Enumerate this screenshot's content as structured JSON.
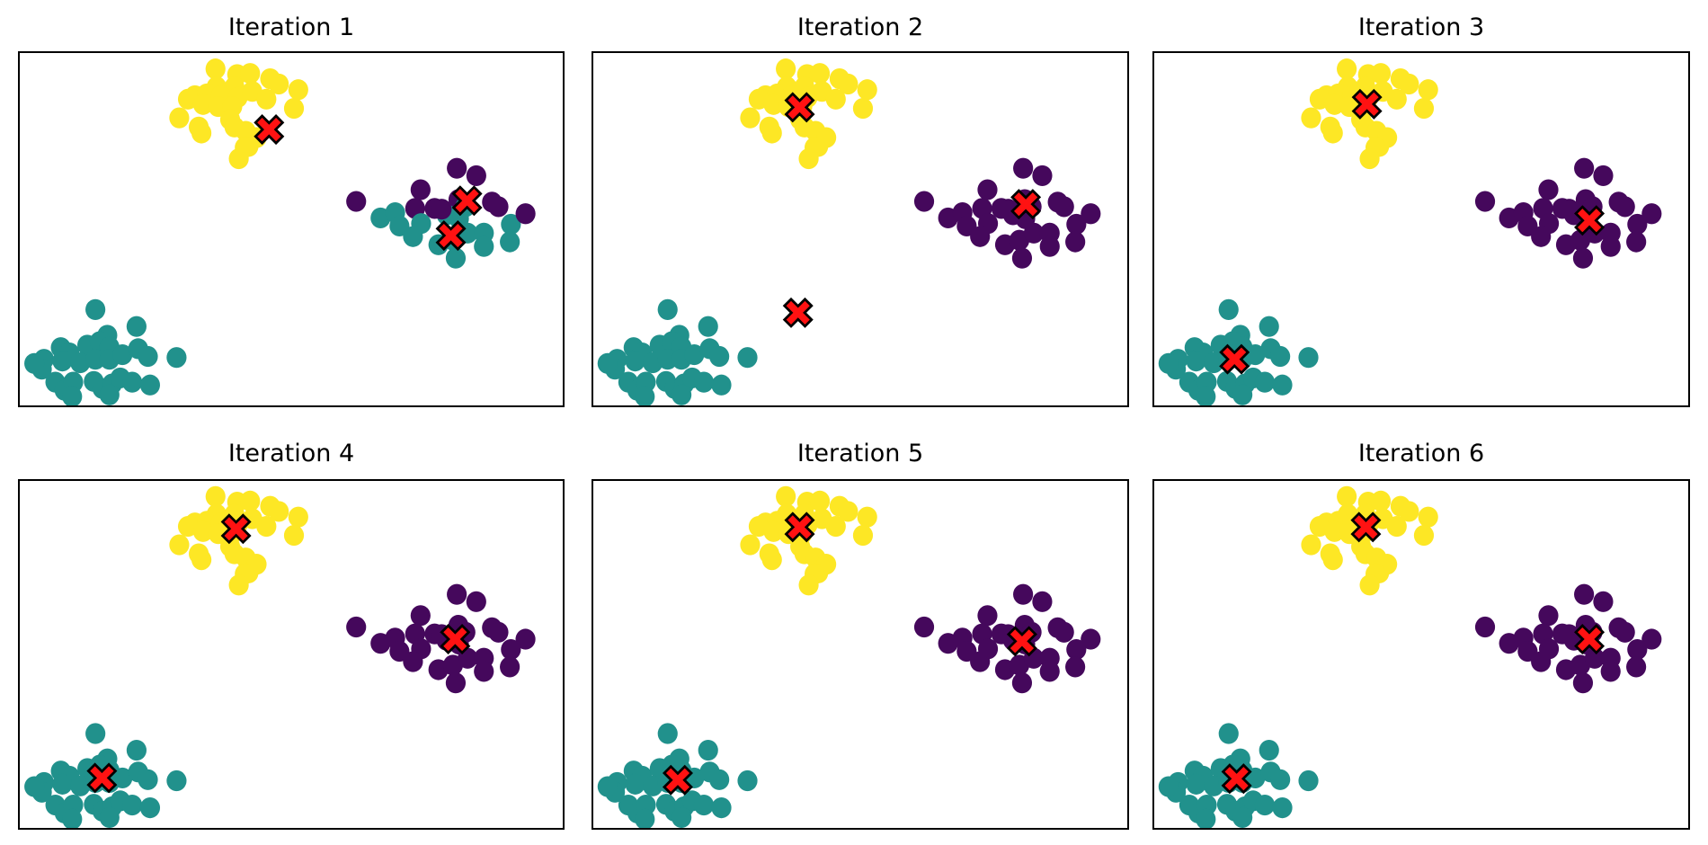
{
  "figure": {
    "background": "#ffffff",
    "kind": "k-means clustering iteration grid (2 rows x 3 columns of scatter subplots)"
  },
  "chart_data": {
    "type": "scatter",
    "title": "",
    "grid": "off",
    "axes": {
      "ticks": "none",
      "tick_labels": "none",
      "frame": "black 2px box",
      "coord_system": "normalized fraction of each panel, origin at top-left, x right, y down"
    },
    "legend": "none",
    "subplots": [
      {
        "title": "Iteration 1",
        "centroids": [
          [
            0.459,
            0.217
          ],
          [
            0.825,
            0.419
          ],
          [
            0.795,
            0.518
          ]
        ],
        "right_cluster_coloring": "split"
      },
      {
        "title": "Iteration 2",
        "centroids": [
          [
            0.386,
            0.154
          ],
          [
            0.811,
            0.429
          ],
          [
            0.383,
            0.737
          ]
        ],
        "right_cluster_coloring": "purple"
      },
      {
        "title": "Iteration 3",
        "centroids": [
          [
            0.398,
            0.145
          ],
          [
            0.816,
            0.475
          ],
          [
            0.149,
            0.869
          ]
        ],
        "right_cluster_coloring": "purple"
      },
      {
        "title": "Iteration 4",
        "centroids": [
          [
            0.398,
            0.138
          ],
          [
            0.803,
            0.456
          ],
          [
            0.15,
            0.856
          ]
        ],
        "right_cluster_coloring": "purple"
      },
      {
        "title": "Iteration 5",
        "centroids": [
          [
            0.386,
            0.133
          ],
          [
            0.804,
            0.462
          ],
          [
            0.157,
            0.862
          ]
        ],
        "right_cluster_coloring": "purple"
      },
      {
        "title": "Iteration 6",
        "centroids": [
          [
            0.396,
            0.133
          ],
          [
            0.816,
            0.456
          ],
          [
            0.153,
            0.858
          ]
        ],
        "right_cluster_coloring": "purple"
      }
    ],
    "clusters": {
      "top_yellow": [
        [
          0.36,
          0.045
        ],
        [
          0.4,
          0.061
        ],
        [
          0.424,
          0.058
        ],
        [
          0.461,
          0.073
        ],
        [
          0.477,
          0.088
        ],
        [
          0.513,
          0.104
        ],
        [
          0.362,
          0.096
        ],
        [
          0.395,
          0.096
        ],
        [
          0.322,
          0.121
        ],
        [
          0.344,
          0.116
        ],
        [
          0.37,
          0.121
        ],
        [
          0.401,
          0.126
        ],
        [
          0.428,
          0.109
        ],
        [
          0.454,
          0.131
        ],
        [
          0.505,
          0.157
        ],
        [
          0.309,
          0.131
        ],
        [
          0.337,
          0.146
        ],
        [
          0.365,
          0.152
        ],
        [
          0.391,
          0.152
        ],
        [
          0.293,
          0.184
        ],
        [
          0.329,
          0.21
        ],
        [
          0.387,
          0.189
        ],
        [
          0.334,
          0.227
        ],
        [
          0.395,
          0.21
        ],
        [
          0.416,
          0.222
        ],
        [
          0.421,
          0.265
        ],
        [
          0.436,
          0.24
        ],
        [
          0.414,
          0.268
        ],
        [
          0.403,
          0.3
        ]
      ],
      "right_purple": [
        [
          0.62,
          0.421
        ],
        [
          0.665,
          0.468
        ],
        [
          0.692,
          0.453
        ],
        [
          0.7,
          0.491
        ],
        [
          0.739,
          0.388
        ],
        [
          0.729,
          0.441
        ],
        [
          0.74,
          0.484
        ],
        [
          0.725,
          0.521
        ],
        [
          0.765,
          0.441
        ],
        [
          0.806,
          0.327
        ],
        [
          0.842,
          0.348
        ],
        [
          0.809,
          0.416
        ],
        [
          0.822,
          0.436
        ],
        [
          0.772,
          0.544
        ],
        [
          0.799,
          0.531
        ],
        [
          0.804,
          0.582
        ],
        [
          0.826,
          0.511
        ],
        [
          0.856,
          0.511
        ],
        [
          0.856,
          0.549
        ],
        [
          0.871,
          0.423
        ],
        [
          0.883,
          0.436
        ],
        [
          0.906,
          0.486
        ],
        [
          0.904,
          0.536
        ],
        [
          0.933,
          0.456
        ],
        [
          0.787,
          0.459
        ],
        [
          0.81,
          0.47
        ],
        [
          0.778,
          0.443
        ]
      ],
      "bottom_left_teal": [
        [
          0.138,
          0.728
        ],
        [
          0.214,
          0.776
        ],
        [
          0.16,
          0.801
        ],
        [
          0.074,
          0.836
        ],
        [
          0.09,
          0.851
        ],
        [
          0.123,
          0.829
        ],
        [
          0.146,
          0.819
        ],
        [
          0.164,
          0.834
        ],
        [
          0.043,
          0.869
        ],
        [
          0.077,
          0.874
        ],
        [
          0.11,
          0.879
        ],
        [
          0.138,
          0.869
        ],
        [
          0.164,
          0.869
        ],
        [
          0.188,
          0.856
        ],
        [
          0.217,
          0.839
        ],
        [
          0.235,
          0.861
        ],
        [
          0.288,
          0.864
        ],
        [
          0.039,
          0.897
        ],
        [
          0.025,
          0.881
        ],
        [
          0.064,
          0.934
        ],
        [
          0.081,
          0.957
        ],
        [
          0.097,
          0.934
        ],
        [
          0.135,
          0.932
        ],
        [
          0.151,
          0.952
        ],
        [
          0.169,
          0.939
        ],
        [
          0.184,
          0.922
        ],
        [
          0.206,
          0.934
        ],
        [
          0.239,
          0.942
        ],
        [
          0.095,
          0.975
        ],
        [
          0.164,
          0.97
        ]
      ]
    },
    "iteration1_right_cluster_teal_indices": [
      1,
      2,
      3,
      6,
      7,
      12,
      13,
      14,
      15,
      16,
      17,
      18,
      21,
      22,
      24,
      25
    ],
    "colors": {
      "yellow": "#FDE725",
      "teal": "#21918C",
      "purple": "#45085C",
      "centroid_fill": "#FF1212",
      "centroid_edge": "#000000"
    },
    "marker": {
      "point_radius_px": 11.2,
      "centroid_size_px": 43,
      "centroid_shape": "X"
    }
  }
}
